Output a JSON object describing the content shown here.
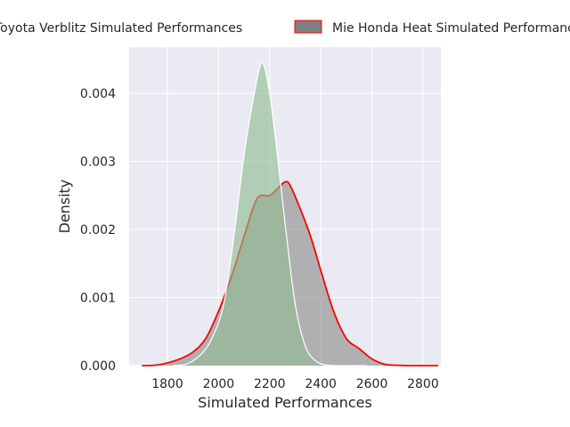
{
  "chart_data": {
    "type": "area",
    "title": "",
    "xlabel": "Simulated Performances",
    "ylabel": "Density",
    "xlim": [
      1650,
      2870
    ],
    "ylim": [
      0,
      0.00468
    ],
    "x_ticks": [
      1800,
      2000,
      2200,
      2400,
      2600,
      2800
    ],
    "y_ticks": [
      0.0,
      0.001,
      0.002,
      0.003,
      0.004
    ],
    "y_tick_labels": [
      "0.000",
      "0.001",
      "0.002",
      "0.003",
      "0.004"
    ],
    "grid": true,
    "legend": {
      "placement": "top-center, above plot, extends beyond figure edges"
    },
    "series": [
      {
        "name": "Toyota Verblitz Simulated Performances",
        "fill_color": "#8fbc8f",
        "line_color": "#ffffff",
        "fill_opacity": 0.62,
        "x": [
          1820,
          1880,
          1940,
          1980,
          2020,
          2060,
          2100,
          2140,
          2170,
          2200,
          2230,
          2260,
          2300,
          2340,
          2380,
          2420,
          2460,
          2520,
          2580
        ],
        "values": [
          0.0,
          3e-05,
          0.0002,
          0.00045,
          0.0009,
          0.0019,
          0.0031,
          0.004,
          0.00445,
          0.004,
          0.0031,
          0.0021,
          0.0009,
          0.00028,
          7e-05,
          1e-05,
          0.0,
          0.0,
          0.0
        ]
      },
      {
        "name": "Mie Honda Heat Simulated Performances",
        "fill_color": "#808080",
        "line_color": "#ff0000",
        "fill_opacity": 0.55,
        "x": [
          1700,
          1750,
          1800,
          1850,
          1900,
          1950,
          2000,
          2050,
          2100,
          2150,
          2200,
          2230,
          2260,
          2280,
          2320,
          2360,
          2400,
          2450,
          2500,
          2550,
          2600,
          2650,
          2700,
          2750,
          2800,
          2860
        ],
        "values": [
          0.0,
          5e-06,
          4e-05,
          0.0001,
          0.0002,
          0.0004,
          0.0008,
          0.0013,
          0.0019,
          0.00245,
          0.0025,
          0.0026,
          0.0027,
          0.00265,
          0.0023,
          0.0019,
          0.0014,
          0.0008,
          0.0004,
          0.00025,
          0.0001,
          2e-05,
          5e-06,
          0.0,
          0.0,
          0.0
        ]
      }
    ]
  }
}
